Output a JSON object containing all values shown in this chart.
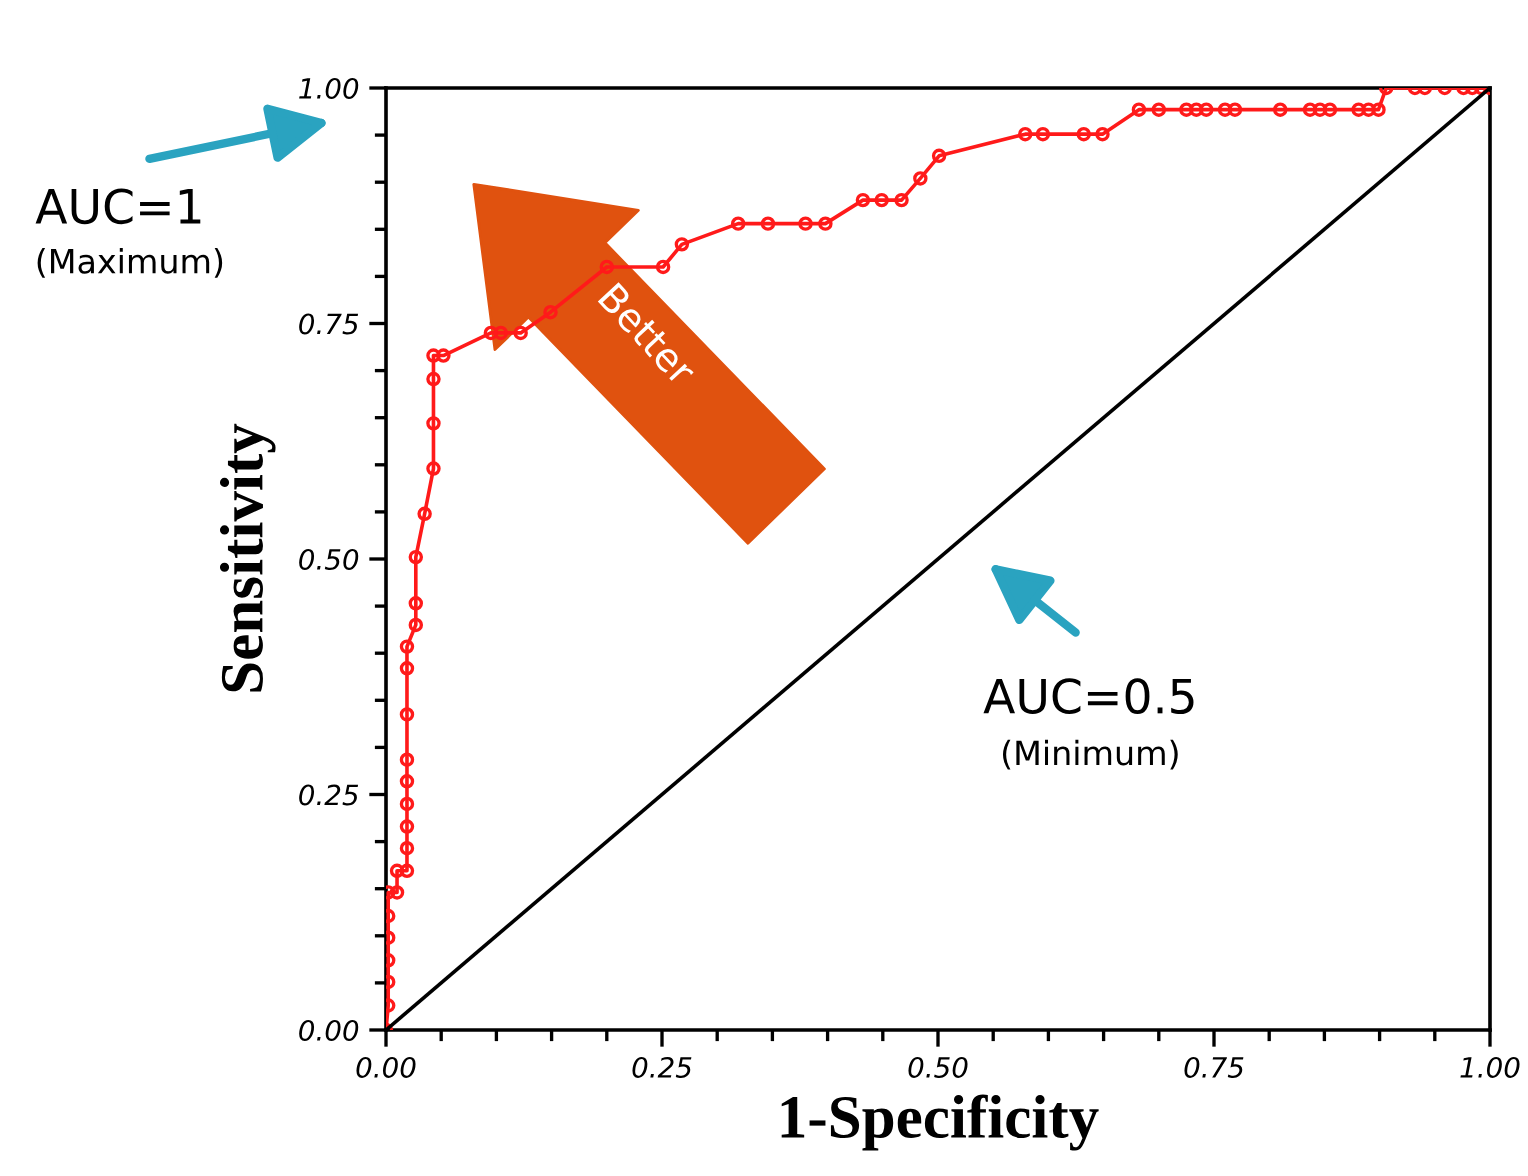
{
  "chart_data": {
    "type": "line",
    "xlabel": "1-Specificity",
    "ylabel": "Sensitivity",
    "xlim": [
      0,
      1
    ],
    "ylim": [
      0,
      1
    ],
    "xticks": [
      {
        "value": 0,
        "label": "0.00"
      },
      {
        "value": 0.25,
        "label": "0.25"
      },
      {
        "value": 0.5,
        "label": "0.50"
      },
      {
        "value": 0.75,
        "label": "0.75"
      },
      {
        "value": 1,
        "label": "1.00"
      }
    ],
    "yticks": [
      {
        "value": 0,
        "label": "0.00"
      },
      {
        "value": 0.25,
        "label": "0.25"
      },
      {
        "value": 0.5,
        "label": "0.50"
      },
      {
        "value": 0.75,
        "label": "0.75"
      },
      {
        "value": 1,
        "label": "1.00"
      }
    ],
    "grid": false,
    "legend": false,
    "series": [
      {
        "color": "#ff1a1a",
        "marker": "circle",
        "line_style": "solid",
        "x": [
          0,
          0.002,
          0.002,
          0.002,
          0.002,
          0.002,
          0.002,
          0.01,
          0.01,
          0.019,
          0.019,
          0.019,
          0.019,
          0.019,
          0.019,
          0.019,
          0.019,
          0.019,
          0.027,
          0.027,
          0.027,
          0.035,
          0.043,
          0.043,
          0.043,
          0.043,
          0.052,
          0.095,
          0.104,
          0.122,
          0.149,
          0.2,
          0.251,
          0.268,
          0.319,
          0.346,
          0.38,
          0.398,
          0.432,
          0.449,
          0.467,
          0.484,
          0.501,
          0.579,
          0.595,
          0.632,
          0.649,
          0.682,
          0.7,
          0.725,
          0.734,
          0.743,
          0.76,
          0.769,
          0.81,
          0.837,
          0.846,
          0.855,
          0.881,
          0.89,
          0.899,
          0.906,
          0.932,
          0.941,
          0.959,
          0.976,
          0.984,
          0.992,
          1.0
        ],
        "values": [
          0,
          0.026,
          0.051,
          0.074,
          0.098,
          0.121,
          0.146,
          0.146,
          0.169,
          0.169,
          0.193,
          0.216,
          0.24,
          0.264,
          0.287,
          0.335,
          0.384,
          0.407,
          0.43,
          0.453,
          0.502,
          0.548,
          0.596,
          0.644,
          0.691,
          0.716,
          0.716,
          0.74,
          0.74,
          0.74,
          0.762,
          0.81,
          0.81,
          0.834,
          0.856,
          0.856,
          0.856,
          0.856,
          0.881,
          0.881,
          0.881,
          0.904,
          0.928,
          0.951,
          0.951,
          0.951,
          0.951,
          0.977,
          0.977,
          0.977,
          0.977,
          0.977,
          0.977,
          0.977,
          0.977,
          0.977,
          0.977,
          0.977,
          0.977,
          0.977,
          0.977,
          1.0,
          1.0,
          1.0,
          1.0,
          1.0,
          1.0,
          1.0,
          1.0
        ]
      },
      {
        "color": "#000000",
        "marker": "none",
        "line_style": "solid",
        "x": [
          0,
          1
        ],
        "values": [
          0,
          1
        ]
      }
    ],
    "annotations": [
      "AUC=1",
      "(Maximum)",
      "Better",
      "AUC=0.5",
      "(Minimum)"
    ]
  }
}
